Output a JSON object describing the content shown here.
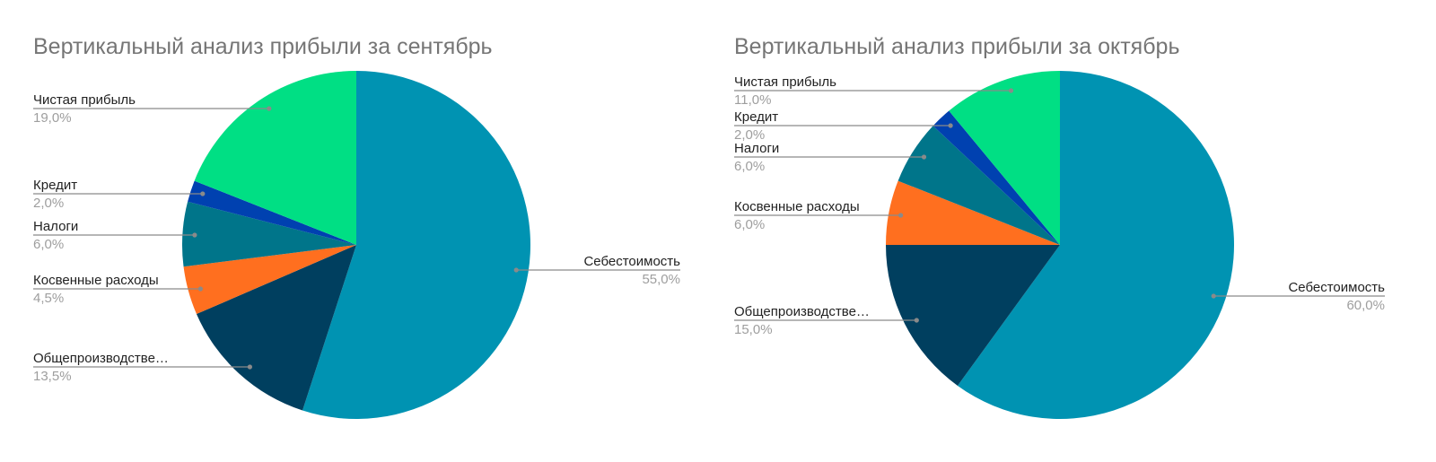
{
  "chart_data": [
    {
      "type": "pie",
      "title": "Вертикальный анализ прибыли за сентябрь",
      "slices": [
        {
          "label": "Себестоимость",
          "value": 55.0,
          "display": "55,0%",
          "color": "#0093b2"
        },
        {
          "label": "Общепроизводстве…",
          "value": 13.5,
          "display": "13,5%",
          "color": "#003f5f"
        },
        {
          "label": "Косвенные расходы",
          "value": 4.5,
          "display": "4,5%",
          "color": "#ff6f1f"
        },
        {
          "label": "Налоги",
          "value": 6.0,
          "display": "6,0%",
          "color": "#00758a"
        },
        {
          "label": "Кредит",
          "value": 2.0,
          "display": "2,0%",
          "color": "#0041b0"
        },
        {
          "label": "Чистая прибыль",
          "value": 19.0,
          "display": "19,0%",
          "color": "#00df84"
        }
      ]
    },
    {
      "type": "pie",
      "title": "Вертикальный анализ прибыли за октябрь",
      "slices": [
        {
          "label": "Себестоимость",
          "value": 60.0,
          "display": "60,0%",
          "color": "#0093b2"
        },
        {
          "label": "Общепроизводстве…",
          "value": 15.0,
          "display": "15,0%",
          "color": "#003f5f"
        },
        {
          "label": "Косвенные расходы",
          "value": 6.0,
          "display": "6,0%",
          "color": "#ff6f1f"
        },
        {
          "label": "Налоги",
          "value": 6.0,
          "display": "6,0%",
          "color": "#00758a"
        },
        {
          "label": "Кредит",
          "value": 2.0,
          "display": "2,0%",
          "color": "#0041b0"
        },
        {
          "label": "Чистая прибыль",
          "value": 11.0,
          "display": "11,0%",
          "color": "#00df84"
        }
      ]
    }
  ]
}
